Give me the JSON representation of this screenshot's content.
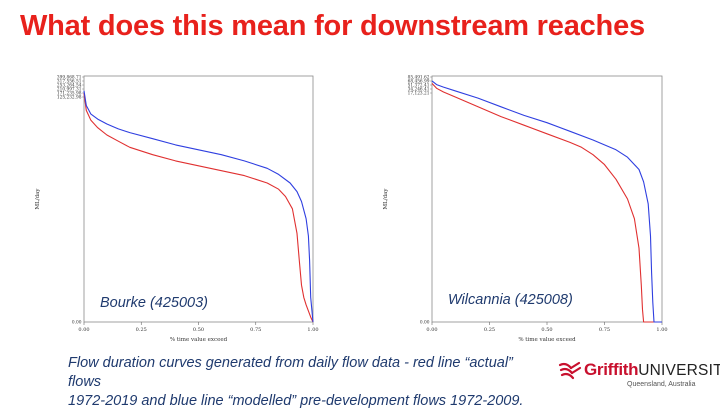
{
  "slide": {
    "title": "What does this mean for downstream reaches",
    "caption_line1": "Flow duration curves generated from daily flow data - red line “actual” flows",
    "caption_line2": "1972-2019 and blue line “modelled” pre-development flows 1972-2009."
  },
  "logo": {
    "word": "Griffith",
    "word2": "UNIVERSITY",
    "sub": "Queensland, Australia",
    "color": "#c8102e"
  },
  "chart_data": [
    {
      "type": "line",
      "title": "",
      "annotation": "Bourke (425003)",
      "xlabel": "% time value exceed",
      "ylabel": "ML/day",
      "xlim": [
        0,
        1
      ],
      "x_ticks": [
        "0.00",
        "0.25",
        "0.50",
        "0.75",
        "1.00"
      ],
      "y_ticks_top": [
        "399,868.71",
        "317,556.51",
        "253,264.54",
        "210,997.31",
        "171,235.98",
        "125,232.98"
      ],
      "y_tick_bottom": "0.00",
      "series": [
        {
          "color": "#e03030",
          "x": [
            0,
            0.01,
            0.03,
            0.06,
            0.1,
            0.15,
            0.2,
            0.3,
            0.4,
            0.5,
            0.6,
            0.7,
            0.75,
            0.8,
            0.85,
            0.88,
            0.91,
            0.93,
            0.94,
            0.95,
            0.96,
            0.97,
            0.99,
            1.0
          ],
          "y": [
            0.93,
            0.86,
            0.82,
            0.79,
            0.76,
            0.735,
            0.71,
            0.68,
            0.655,
            0.635,
            0.615,
            0.595,
            0.58,
            0.565,
            0.54,
            0.51,
            0.46,
            0.36,
            0.25,
            0.15,
            0.1,
            0.07,
            0.02,
            0
          ]
        },
        {
          "color": "#2f3fe0",
          "x": [
            0,
            0.01,
            0.03,
            0.06,
            0.1,
            0.15,
            0.2,
            0.3,
            0.4,
            0.5,
            0.6,
            0.7,
            0.8,
            0.85,
            0.9,
            0.93,
            0.95,
            0.97,
            0.98,
            0.985,
            0.99,
            1.0
          ],
          "y": [
            0.94,
            0.88,
            0.845,
            0.825,
            0.805,
            0.785,
            0.77,
            0.745,
            0.72,
            0.7,
            0.68,
            0.655,
            0.625,
            0.6,
            0.565,
            0.53,
            0.49,
            0.42,
            0.35,
            0.25,
            0.1,
            0
          ]
        }
      ]
    },
    {
      "type": "line",
      "title": "",
      "annotation": "Wilcannia (425008)",
      "xlabel": "% time value exceed",
      "ylabel": "ML/day",
      "xlim": [
        0,
        1
      ],
      "x_ticks": [
        "0.00",
        "0.25",
        "0.50",
        "0.75",
        "1.00"
      ],
      "y_ticks_top": [
        "85,491.62",
        "68,456.99",
        "51,372.41",
        "34,246.41",
        "17,123.21"
      ],
      "y_tick_bottom": "0.00",
      "series": [
        {
          "color": "#e03030",
          "x": [
            0,
            0.02,
            0.05,
            0.1,
            0.2,
            0.3,
            0.4,
            0.5,
            0.6,
            0.65,
            0.7,
            0.75,
            0.8,
            0.85,
            0.88,
            0.9,
            0.91,
            0.915,
            0.92,
            0.93,
            1.0
          ],
          "y": [
            0.97,
            0.95,
            0.935,
            0.915,
            0.875,
            0.835,
            0.8,
            0.765,
            0.73,
            0.71,
            0.68,
            0.64,
            0.58,
            0.5,
            0.42,
            0.3,
            0.15,
            0.05,
            0,
            0,
            0
          ]
        },
        {
          "color": "#2f3fe0",
          "x": [
            0,
            0.02,
            0.05,
            0.1,
            0.2,
            0.3,
            0.4,
            0.5,
            0.6,
            0.7,
            0.8,
            0.85,
            0.9,
            0.92,
            0.94,
            0.95,
            0.955,
            0.96,
            0.965,
            0.97,
            1.0
          ],
          "y": [
            0.98,
            0.965,
            0.955,
            0.94,
            0.91,
            0.875,
            0.84,
            0.81,
            0.775,
            0.74,
            0.7,
            0.67,
            0.62,
            0.57,
            0.48,
            0.35,
            0.2,
            0.08,
            0,
            0,
            0
          ]
        }
      ]
    }
  ]
}
